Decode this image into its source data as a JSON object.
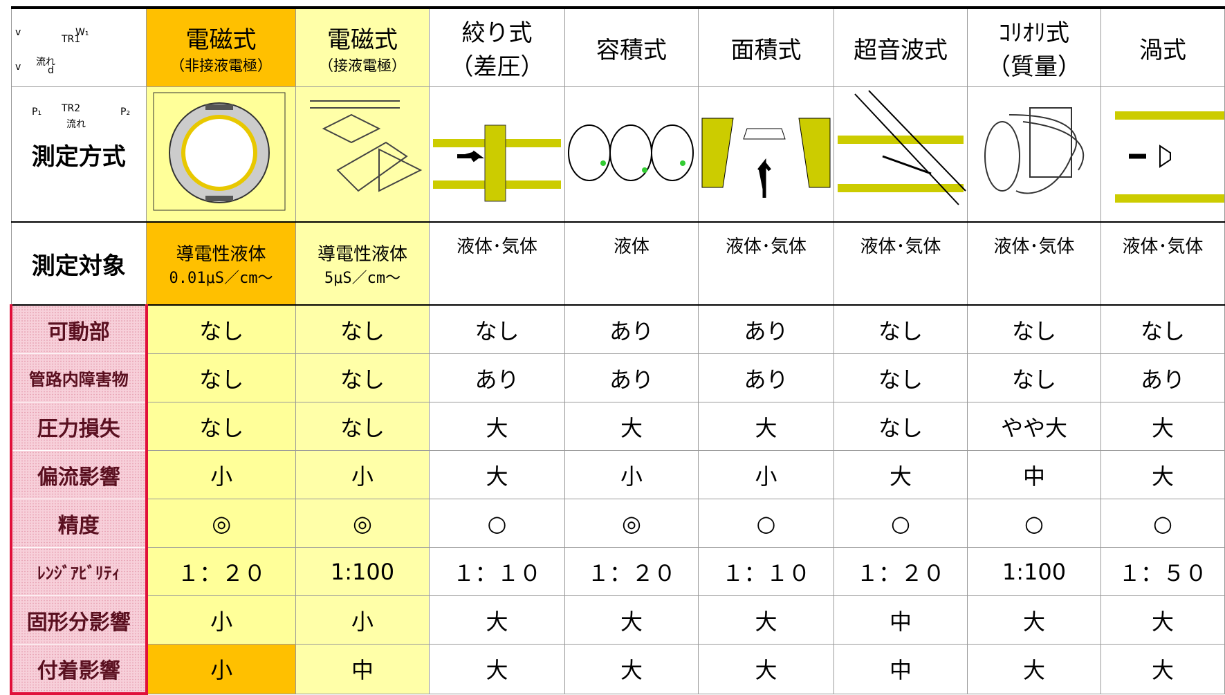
{
  "header": {
    "columns": [
      {
        "title": "電磁式",
        "subtitle": "（非接液電極）"
      },
      {
        "title": "電磁式",
        "subtitle": "（接液電極）"
      },
      {
        "title": "絞り式",
        "subtitle": "（差圧）"
      },
      {
        "title": "容積式"
      },
      {
        "title": "面積式"
      },
      {
        "title": "超音波式"
      },
      {
        "title": "ｺﾘｵﾘ式",
        "subtitle": "（質量）"
      },
      {
        "title": "渦式"
      }
    ]
  },
  "method": {
    "label": "測定方式",
    "diagram_labels": [
      [],
      [],
      [
        "流れ",
        "P₁",
        "P₂"
      ],
      [],
      [
        "W₁",
        "流れ"
      ],
      [
        "TR1",
        "TR2",
        "v"
      ],
      [],
      [
        "v",
        "d"
      ]
    ]
  },
  "target": {
    "label": "測定対象",
    "values": [
      {
        "line1": "導電性液体",
        "line2": "0.01μS／cm～"
      },
      {
        "line1": "導電性液体",
        "line2": "5μS／cm～"
      },
      {
        "line1": "液体･気体"
      },
      {
        "line1": "液体"
      },
      {
        "line1": "液体･気体"
      },
      {
        "line1": "液体･気体"
      },
      {
        "line1": "液体･気体"
      },
      {
        "line1": "液体･気体"
      }
    ]
  },
  "rows": [
    {
      "label": "可動部",
      "values": [
        "なし",
        "なし",
        "なし",
        "あり",
        "あり",
        "なし",
        "なし",
        "なし"
      ]
    },
    {
      "label": "管路内障害物",
      "values": [
        "なし",
        "なし",
        "あり",
        "あり",
        "あり",
        "なし",
        "なし",
        "あり"
      ]
    },
    {
      "label": "圧力損失",
      "values": [
        "なし",
        "なし",
        "大",
        "大",
        "大",
        "なし",
        "やや大",
        "大"
      ]
    },
    {
      "label": "偏流影響",
      "values": [
        "小",
        "小",
        "大",
        "小",
        "小",
        "大",
        "中",
        "大"
      ]
    },
    {
      "label": "精度",
      "values": [
        "◎",
        "◎",
        "○",
        "◎",
        "○",
        "○",
        "○",
        "○"
      ]
    },
    {
      "label": "ﾚﾝｼﾞｱﾋﾞﾘﾃｨ",
      "values": [
        "１：２０",
        "1:100",
        "１：１０",
        "１：２０",
        "１：１０",
        "１：２０",
        "1:100",
        "１：５０"
      ]
    },
    {
      "label": "固形分影響",
      "values": [
        "小",
        "小",
        "大",
        "大",
        "大",
        "中",
        "大",
        "大"
      ]
    },
    {
      "label": "付着影響",
      "values": [
        "小",
        "中",
        "大",
        "大",
        "大",
        "中",
        "大",
        "大"
      ]
    }
  ]
}
